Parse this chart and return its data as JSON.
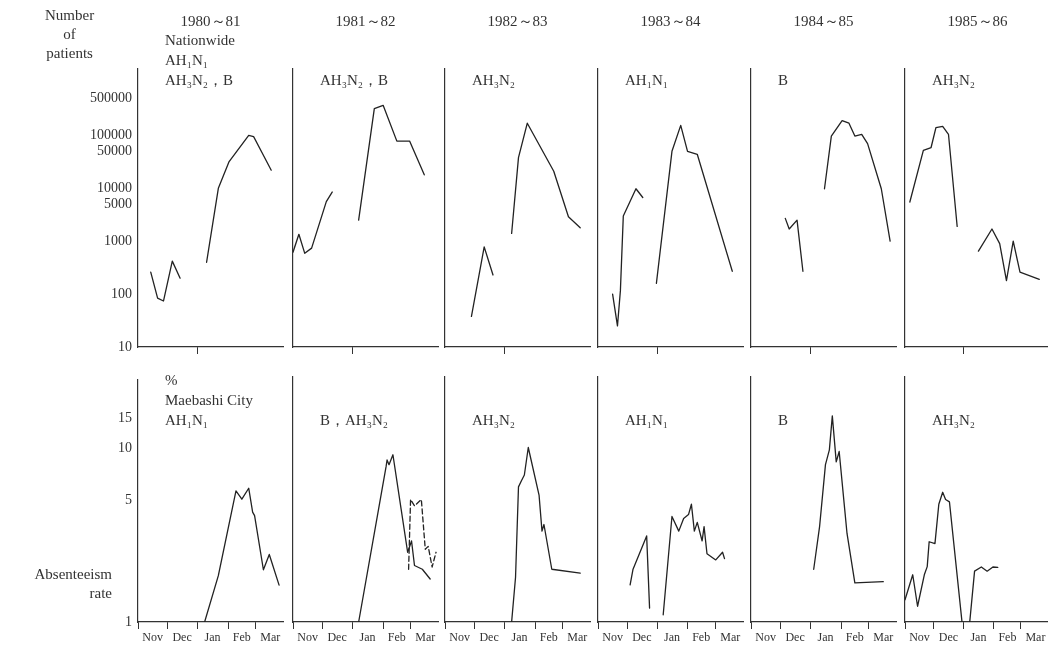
{
  "chart_data": [
    {
      "type": "line",
      "title": "1980～81",
      "ylabel": "Number of patients",
      "annotations": [
        "Nationwide",
        "AH₁N₁",
        "AH₃N₂，B"
      ],
      "xlim": [
        "1980-11-01",
        "1981-03-29"
      ],
      "xticks": [
        {
          "value": "1981-01-01",
          "label": null
        }
      ],
      "ylim": [
        10,
        1800000
      ],
      "yticks": [
        10,
        100,
        1000,
        5000,
        10000,
        50000,
        100000,
        500000
      ],
      "log": true,
      "grid": false,
      "legend": false,
      "marker": "none",
      "tick_labels": "y",
      "series": [
        {
          "color": "#222222",
          "x": [
            "1980-11-14",
            "1980-11-21",
            "1980-11-27",
            "1980-12-06",
            "1980-12-14"
          ],
          "values": [
            260,
            84,
            74,
            420,
            200
          ]
        },
        {
          "color": "#222222",
          "x": [
            "1981-01-10",
            "1981-01-22",
            "1981-02-02",
            "1981-02-22",
            "1981-02-27",
            "1981-03-17"
          ],
          "values": [
            400,
            10000,
            32000,
            100000,
            95000,
            22000
          ]
        }
      ]
    },
    {
      "type": "line",
      "title": "1981～82",
      "annotations": [
        "AH₃N₂，B"
      ],
      "xlim": [
        "1981-11-01",
        "1982-03-29"
      ],
      "xticks": [
        {
          "value": "1982-01-01",
          "label": null
        }
      ],
      "ylim": [
        10,
        1800000
      ],
      "yticks": [
        10,
        100,
        1000,
        5000,
        10000,
        50000,
        100000,
        500000
      ],
      "log": true,
      "grid": false,
      "legend": false,
      "marker": "none",
      "tick_labels": false,
      "series": [
        {
          "color": "#222222",
          "x": [
            "1981-11-01",
            "1981-11-07",
            "1981-11-13",
            "1981-11-20",
            "1981-12-05",
            "1981-12-11"
          ],
          "values": [
            620,
            1350,
            590,
            740,
            5600,
            8500
          ]
        },
        {
          "color": "#222222",
          "x": [
            "1982-01-07",
            "1982-01-23",
            "1982-02-01",
            "1982-02-15",
            "1982-02-28",
            "1982-03-15"
          ],
          "values": [
            2500,
            320000,
            370000,
            78000,
            78000,
            18000
          ]
        }
      ]
    },
    {
      "type": "line",
      "title": "1982～83",
      "annotations": [
        "AH₃N₂"
      ],
      "xlim": [
        "1982-11-01",
        "1983-03-29"
      ],
      "xticks": [
        {
          "value": "1983-01-01",
          "label": null
        }
      ],
      "ylim": [
        10,
        1800000
      ],
      "yticks": [
        10,
        100,
        1000,
        5000,
        10000,
        50000,
        100000,
        500000
      ],
      "log": true,
      "grid": false,
      "legend": false,
      "marker": "none",
      "tick_labels": false,
      "series": [
        {
          "color": "#222222",
          "x": [
            "1982-11-28",
            "1982-12-11",
            "1982-12-20"
          ],
          "values": [
            38,
            780,
            230
          ]
        },
        {
          "color": "#222222",
          "x": [
            "1983-01-08",
            "1983-01-15",
            "1983-01-24",
            "1983-02-20",
            "1983-03-07",
            "1983-03-19"
          ],
          "values": [
            1400,
            38000,
            170000,
            21000,
            2900,
            1800
          ]
        }
      ]
    },
    {
      "type": "line",
      "title": "1983～84",
      "annotations": [
        "AH₁N₁"
      ],
      "xlim": [
        "1983-11-01",
        "1984-03-29"
      ],
      "xticks": [
        {
          "value": "1984-01-01",
          "label": null
        }
      ],
      "ylim": [
        10,
        1800000
      ],
      "yticks": [
        10,
        100,
        1000,
        5000,
        10000,
        50000,
        100000,
        500000
      ],
      "log": true,
      "grid": false,
      "legend": false,
      "marker": "none",
      "tick_labels": false,
      "series": [
        {
          "color": "#222222",
          "x": [
            "1983-11-16",
            "1983-11-21",
            "1983-11-24",
            "1983-11-27",
            "1983-12-10",
            "1983-12-17"
          ],
          "values": [
            100,
            25,
            115,
            3000,
            9800,
            6700
          ]
        },
        {
          "color": "#222222",
          "x": [
            "1983-12-31",
            "1984-01-16",
            "1984-01-25",
            "1984-02-01",
            "1984-02-11",
            "1984-03-18"
          ],
          "values": [
            160,
            50000,
            155000,
            50000,
            44000,
            270
          ]
        }
      ]
    },
    {
      "type": "line",
      "title": "1984～85",
      "annotations": [
        "B"
      ],
      "xlim": [
        "1984-11-01",
        "1985-03-29"
      ],
      "xticks": [
        {
          "value": "1985-01-01",
          "label": null
        }
      ],
      "ylim": [
        10,
        1800000
      ],
      "yticks": [
        10,
        100,
        1000,
        5000,
        10000,
        50000,
        100000,
        500000
      ],
      "log": true,
      "grid": false,
      "legend": false,
      "marker": "none",
      "tick_labels": false,
      "series": [
        {
          "color": "#222222",
          "x": [
            "1984-12-06",
            "1984-12-10",
            "1984-12-18",
            "1984-12-24"
          ],
          "values": [
            2700,
            1700,
            2500,
            270
          ]
        },
        {
          "color": "#222222",
          "x": [
            "1985-01-15",
            "1985-01-22",
            "1985-02-02",
            "1985-02-09",
            "1985-02-15",
            "1985-02-22",
            "1985-02-28",
            "1985-03-14",
            "1985-03-23"
          ],
          "values": [
            9800,
            97000,
            190000,
            170000,
            97000,
            105000,
            70000,
            9800,
            1000
          ]
        }
      ]
    },
    {
      "type": "line",
      "title": "1985～86",
      "annotations": [
        "AH₃N₂"
      ],
      "xlim": [
        "1985-11-01",
        "1986-03-29"
      ],
      "xticks": [
        {
          "value": "1986-01-01",
          "label": null
        }
      ],
      "ylim": [
        10,
        1800000
      ],
      "yticks": [
        10,
        100,
        1000,
        5000,
        10000,
        50000,
        100000,
        500000
      ],
      "log": true,
      "grid": false,
      "legend": false,
      "marker": "none",
      "tick_labels": false,
      "series": [
        {
          "color": "#222222",
          "x": [
            "1985-11-06",
            "1985-11-20",
            "1985-11-28",
            "1985-12-03",
            "1985-12-10",
            "1985-12-16",
            "1985-12-25"
          ],
          "values": [
            5500,
            52000,
            59000,
            140000,
            148000,
            105000,
            1900
          ]
        },
        {
          "color": "#222222",
          "x": [
            "1986-01-16",
            "1986-01-30",
            "1986-02-07",
            "1986-02-14",
            "1986-02-21",
            "1986-02-28",
            "1986-03-20"
          ],
          "values": [
            650,
            1700,
            900,
            180,
            1000,
            260,
            190
          ]
        }
      ]
    },
    {
      "type": "line",
      "ylabel": "Absenteeism rate",
      "annotations": [
        "%",
        "Maebashi City",
        "AH₁N₁"
      ],
      "xlim": [
        "1980-11-01",
        "1981-03-29"
      ],
      "xticks": [
        {
          "value": "1980-11-01",
          "label": null
        },
        {
          "value": "1980-11-16",
          "label": "Nov"
        },
        {
          "value": "1980-12-01",
          "label": null
        },
        {
          "value": "1980-12-16",
          "label": "Dec"
        },
        {
          "value": "1981-01-01",
          "label": null
        },
        {
          "value": "1981-01-16",
          "label": "Jan"
        },
        {
          "value": "1981-02-01",
          "label": null
        },
        {
          "value": "1981-02-15",
          "label": "Feb"
        },
        {
          "value": "1981-03-01",
          "label": null
        },
        {
          "value": "1981-03-16",
          "label": "Mar"
        }
      ],
      "ylim": [
        1,
        25
      ],
      "yticks": [
        1,
        5,
        10,
        15
      ],
      "log": true,
      "grid": false,
      "legend": false,
      "marker": "none",
      "series": [
        {
          "color": "#222222",
          "x": [
            "1981-01-08",
            "1981-01-22",
            "1981-02-09",
            "1981-02-15",
            "1981-02-22",
            "1981-02-26",
            "1981-02-28",
            "1981-03-09",
            "1981-03-15",
            "1981-03-25"
          ],
          "values": [
            1,
            1.85,
            5.7,
            5.1,
            5.9,
            4.3,
            4.1,
            2.0,
            2.45,
            1.63
          ]
        }
      ]
    },
    {
      "type": "line",
      "annotations": [
        "B，AH₃N₂"
      ],
      "xlim": [
        "1981-11-01",
        "1982-03-29"
      ],
      "xticks": [
        {
          "value": "1981-11-01",
          "label": null
        },
        {
          "value": "1981-11-16",
          "label": "Nov"
        },
        {
          "value": "1981-12-01",
          "label": null
        },
        {
          "value": "1981-12-16",
          "label": "Dec"
        },
        {
          "value": "1982-01-01",
          "label": null
        },
        {
          "value": "1982-01-16",
          "label": "Jan"
        },
        {
          "value": "1982-02-01",
          "label": null
        },
        {
          "value": "1982-02-15",
          "label": "Feb"
        },
        {
          "value": "1982-03-01",
          "label": null
        },
        {
          "value": "1982-03-16",
          "label": "Mar"
        }
      ],
      "ylim": [
        1,
        25
      ],
      "yticks": [
        1,
        5,
        10,
        15
      ],
      "log": true,
      "grid": false,
      "legend": false,
      "marker": "none",
      "tick_labels": "x",
      "series": [
        {
          "color": "#222222",
          "x": [
            "1982-01-07",
            "1982-02-04",
            "1982-02-05",
            "1982-02-07",
            "1982-02-11",
            "1982-02-26",
            "1982-03-02",
            "1982-03-05",
            "1982-03-13",
            "1982-03-21"
          ],
          "values": [
            1,
            7.7,
            8.4,
            7.9,
            9.0,
            2.5,
            2.9,
            2.1,
            2.0,
            1.76
          ]
        },
        {
          "color": "#222222",
          "line_style": "dashed",
          "x": [
            "1982-02-27",
            "1982-03-01",
            "1982-03-05",
            "1982-03-12",
            "1982-03-16",
            "1982-03-19",
            "1982-03-23",
            "1982-03-27"
          ],
          "values": [
            2.0,
            5.0,
            4.6,
            5.0,
            2.6,
            2.7,
            2.06,
            2.5
          ]
        }
      ]
    },
    {
      "type": "line",
      "annotations": [
        "AH₃N₂"
      ],
      "xlim": [
        "1982-11-01",
        "1983-03-29"
      ],
      "xticks": [
        {
          "value": "1982-11-01",
          "label": null
        },
        {
          "value": "1982-11-16",
          "label": "Nov"
        },
        {
          "value": "1982-12-01",
          "label": null
        },
        {
          "value": "1982-12-16",
          "label": "Dec"
        },
        {
          "value": "1983-01-01",
          "label": null
        },
        {
          "value": "1983-01-16",
          "label": "Jan"
        },
        {
          "value": "1983-02-01",
          "label": null
        },
        {
          "value": "1983-02-15",
          "label": "Feb"
        },
        {
          "value": "1983-03-01",
          "label": null
        },
        {
          "value": "1983-03-16",
          "label": "Mar"
        }
      ],
      "ylim": [
        1,
        25
      ],
      "yticks": [
        1,
        5,
        10,
        15
      ],
      "log": true,
      "grid": false,
      "legend": false,
      "marker": "none",
      "tick_labels": "x",
      "series": [
        {
          "color": "#222222",
          "x": [
            "1983-01-08",
            "1983-01-12",
            "1983-01-15",
            "1983-01-18",
            "1983-01-21",
            "1983-01-25",
            "1983-02-05",
            "1983-02-08",
            "1983-02-10",
            "1983-02-18",
            "1983-03-19"
          ],
          "values": [
            1,
            1.8,
            5.9,
            6.4,
            6.9,
            9.9,
            5.3,
            3.3,
            3.6,
            2.0,
            1.9
          ]
        }
      ]
    },
    {
      "type": "line",
      "annotations": [
        "AH₁N₁"
      ],
      "xlim": [
        "1983-11-01",
        "1984-03-29"
      ],
      "xticks": [
        {
          "value": "1983-11-01",
          "label": null
        },
        {
          "value": "1983-11-16",
          "label": "Nov"
        },
        {
          "value": "1983-12-01",
          "label": null
        },
        {
          "value": "1983-12-16",
          "label": "Dec"
        },
        {
          "value": "1984-01-01",
          "label": null
        },
        {
          "value": "1984-01-16",
          "label": "Jan"
        },
        {
          "value": "1984-02-01",
          "label": null
        },
        {
          "value": "1984-02-15",
          "label": "Feb"
        },
        {
          "value": "1984-03-01",
          "label": null
        },
        {
          "value": "1984-03-16",
          "label": "Mar"
        }
      ],
      "ylim": [
        1,
        25
      ],
      "yticks": [
        1,
        5,
        10,
        15
      ],
      "log": true,
      "grid": false,
      "legend": false,
      "marker": "none",
      "tick_labels": "x",
      "series": [
        {
          "color": "#222222",
          "x": [
            "1983-12-04",
            "1983-12-07",
            "1983-12-21",
            "1983-12-24"
          ],
          "values": [
            1.63,
            2.0,
            3.1,
            1.2
          ]
        },
        {
          "color": "#222222",
          "x": [
            "1984-01-07",
            "1984-01-16",
            "1984-01-23",
            "1984-01-28",
            "1984-02-02",
            "1984-02-05",
            "1984-02-08",
            "1984-02-11",
            "1984-02-16",
            "1984-02-18",
            "1984-02-21",
            "1984-03-01",
            "1984-03-08",
            "1984-03-10"
          ],
          "values": [
            1.1,
            4.0,
            3.3,
            3.9,
            4.1,
            4.7,
            3.3,
            3.7,
            2.9,
            3.5,
            2.45,
            2.26,
            2.5,
            2.3
          ]
        }
      ]
    },
    {
      "type": "line",
      "annotations": [
        "B"
      ],
      "xlim": [
        "1984-11-01",
        "1985-03-29"
      ],
      "xticks": [
        {
          "value": "1984-11-01",
          "label": null
        },
        {
          "value": "1984-11-16",
          "label": "Nov"
        },
        {
          "value": "1984-12-01",
          "label": null
        },
        {
          "value": "1984-12-16",
          "label": "Dec"
        },
        {
          "value": "1985-01-01",
          "label": null
        },
        {
          "value": "1985-01-16",
          "label": "Jan"
        },
        {
          "value": "1985-02-01",
          "label": null
        },
        {
          "value": "1985-02-15",
          "label": "Feb"
        },
        {
          "value": "1985-03-01",
          "label": null
        },
        {
          "value": "1985-03-16",
          "label": "Mar"
        }
      ],
      "ylim": [
        1,
        25
      ],
      "yticks": [
        1,
        5,
        10,
        15
      ],
      "log": true,
      "grid": false,
      "legend": false,
      "marker": "none",
      "tick_labels": "x",
      "series": [
        {
          "color": "#222222",
          "x": [
            "1985-01-04",
            "1985-01-10",
            "1985-01-16",
            "1985-01-20",
            "1985-01-23",
            "1985-01-27",
            "1985-01-30",
            "1985-02-07",
            "1985-02-15",
            "1985-03-16"
          ],
          "values": [
            2.0,
            3.5,
            7.9,
            9.6,
            15,
            8.2,
            9.4,
            3.2,
            1.67,
            1.7
          ]
        }
      ]
    },
    {
      "type": "line",
      "annotations": [
        "AH₃N₂"
      ],
      "xlim": [
        "1985-11-01",
        "1986-03-29"
      ],
      "xticks": [
        {
          "value": "1985-11-01",
          "label": null
        },
        {
          "value": "1985-11-16",
          "label": "Nov"
        },
        {
          "value": "1985-12-01",
          "label": null
        },
        {
          "value": "1985-12-16",
          "label": "Dec"
        },
        {
          "value": "1986-01-01",
          "label": null
        },
        {
          "value": "1986-01-16",
          "label": "Jan"
        },
        {
          "value": "1986-02-01",
          "label": null
        },
        {
          "value": "1986-02-15",
          "label": "Feb"
        },
        {
          "value": "1986-03-01",
          "label": null
        },
        {
          "value": "1986-03-16",
          "label": "Mar"
        }
      ],
      "ylim": [
        1,
        25
      ],
      "yticks": [
        1,
        5,
        10,
        15
      ],
      "log": true,
      "grid": false,
      "legend": false,
      "marker": "none",
      "tick_labels": "x",
      "series": [
        {
          "color": "#222222",
          "x": [
            "1985-11-01",
            "1985-11-09",
            "1985-11-14",
            "1985-11-21",
            "1985-11-24",
            "1985-11-26",
            "1985-12-02",
            "1985-12-06",
            "1985-12-10",
            "1985-12-13",
            "1985-12-17",
            "1985-12-30"
          ],
          "values": [
            1.34,
            1.86,
            1.23,
            1.86,
            2.07,
            2.87,
            2.8,
            4.7,
            5.5,
            5.0,
            4.85,
            1.0
          ]
        },
        {
          "color": "#222222",
          "x": [
            "1986-01-07",
            "1986-01-12",
            "1986-01-19",
            "1986-01-25",
            "1986-01-31",
            "1986-02-05"
          ],
          "values": [
            1.0,
            1.95,
            2.06,
            1.95,
            2.06,
            2.05
          ]
        }
      ]
    }
  ]
}
